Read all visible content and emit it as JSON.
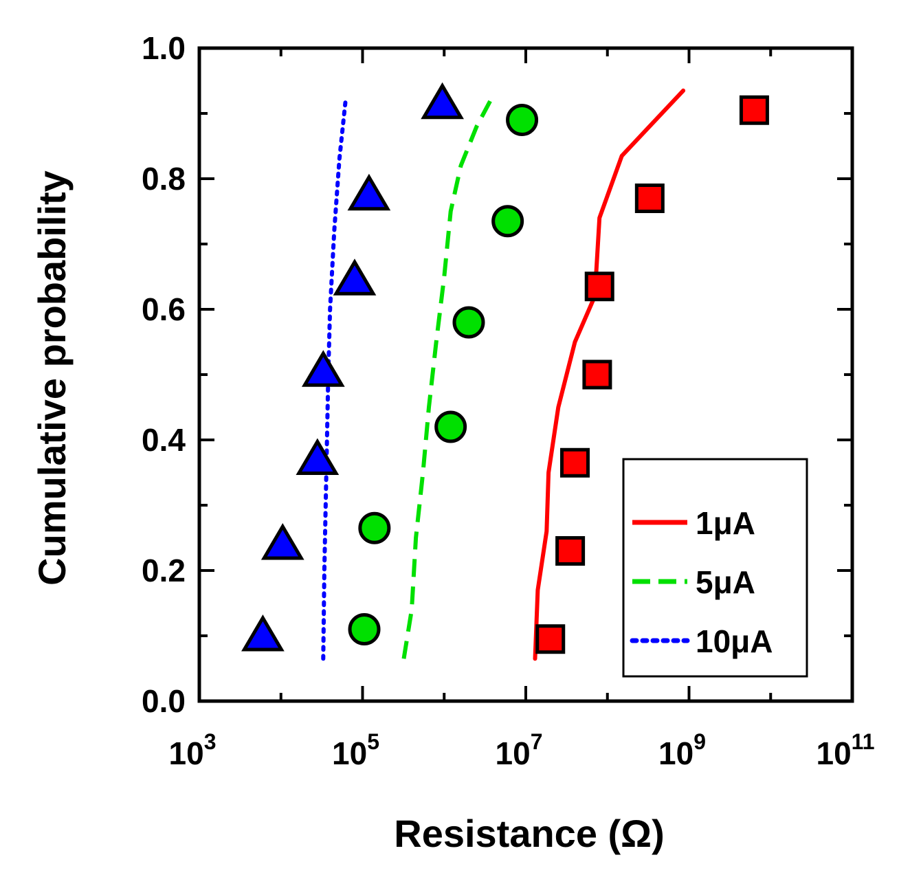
{
  "chart_data": {
    "type": "scatter",
    "xlabel": "Resistance (Ω)",
    "ylabel": "Cumulative probability",
    "xscale": "log",
    "xlim": [
      1000,
      100000000000
    ],
    "ylim": [
      0.0,
      1.0
    ],
    "x_tick_exponents": [
      "3",
      "5",
      "7",
      "9",
      "11"
    ],
    "x_tick_base": "10",
    "y_tick_labels": [
      "0.0",
      "0.2",
      "0.4",
      "0.6",
      "0.8",
      "1.0"
    ],
    "y_ticks": [
      0.0,
      0.2,
      0.4,
      0.6,
      0.8,
      1.0
    ],
    "grid": false,
    "legend_position": "bottom-right",
    "series": [
      {
        "name": "1μA",
        "color": "#ff0000",
        "marker": "square",
        "line_style": "solid",
        "points": [
          {
            "x": 20000000,
            "y": 0.095
          },
          {
            "x": 35000000,
            "y": 0.23
          },
          {
            "x": 40000000,
            "y": 0.365
          },
          {
            "x": 75000000,
            "y": 0.5
          },
          {
            "x": 80000000,
            "y": 0.635
          },
          {
            "x": 330000000,
            "y": 0.77
          },
          {
            "x": 6300000000,
            "y": 0.905
          }
        ],
        "fit": [
          {
            "x": 13000000,
            "y": 0.065
          },
          {
            "x": 14000000,
            "y": 0.17
          },
          {
            "x": 18000000,
            "y": 0.26
          },
          {
            "x": 19000000,
            "y": 0.35
          },
          {
            "x": 25000000,
            "y": 0.45
          },
          {
            "x": 40000000,
            "y": 0.55
          },
          {
            "x": 70000000,
            "y": 0.62
          },
          {
            "x": 80000000,
            "y": 0.74
          },
          {
            "x": 150000000,
            "y": 0.835
          },
          {
            "x": 300000000,
            "y": 0.875
          },
          {
            "x": 850000000,
            "y": 0.935
          }
        ]
      },
      {
        "name": "5μA",
        "color": "#00e000",
        "marker": "circle",
        "line_style": "dashed",
        "points": [
          {
            "x": 105000,
            "y": 0.11
          },
          {
            "x": 140000,
            "y": 0.265
          },
          {
            "x": 1200000,
            "y": 0.42
          },
          {
            "x": 2000000,
            "y": 0.58
          },
          {
            "x": 6000000,
            "y": 0.735
          },
          {
            "x": 9000000,
            "y": 0.89
          }
        ],
        "fit": [
          {
            "x": 320000,
            "y": 0.065
          },
          {
            "x": 400000,
            "y": 0.14
          },
          {
            "x": 450000,
            "y": 0.25
          },
          {
            "x": 550000,
            "y": 0.35
          },
          {
            "x": 650000,
            "y": 0.45
          },
          {
            "x": 800000,
            "y": 0.55
          },
          {
            "x": 1000000,
            "y": 0.65
          },
          {
            "x": 1200000,
            "y": 0.75
          },
          {
            "x": 1600000,
            "y": 0.82
          },
          {
            "x": 2500000,
            "y": 0.88
          },
          {
            "x": 3700000,
            "y": 0.92
          }
        ]
      },
      {
        "name": "10μA",
        "color": "#0000ff",
        "marker": "triangle",
        "line_style": "dotted",
        "points": [
          {
            "x": 6000,
            "y": 0.1
          },
          {
            "x": 10500,
            "y": 0.24
          },
          {
            "x": 28000,
            "y": 0.37
          },
          {
            "x": 33000,
            "y": 0.505
          },
          {
            "x": 80000,
            "y": 0.645
          },
          {
            "x": 120000,
            "y": 0.775
          },
          {
            "x": 950000,
            "y": 0.915
          }
        ],
        "fit": [
          {
            "x": 33000,
            "y": 0.065
          },
          {
            "x": 34000,
            "y": 0.2
          },
          {
            "x": 36000,
            "y": 0.35
          },
          {
            "x": 38000,
            "y": 0.5
          },
          {
            "x": 40000,
            "y": 0.6
          },
          {
            "x": 45000,
            "y": 0.72
          },
          {
            "x": 52000,
            "y": 0.83
          },
          {
            "x": 62000,
            "y": 0.92
          }
        ]
      }
    ]
  }
}
